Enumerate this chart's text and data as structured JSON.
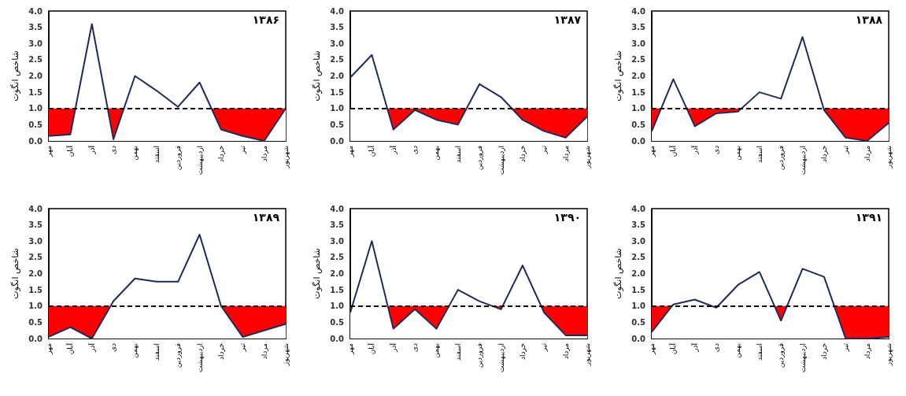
{
  "chart_data": [
    {
      "type": "line",
      "title": "۱۳۸۶",
      "ylabel": "شاخص انگوت",
      "categories": [
        "مهر",
        "آبان",
        "آذر",
        "دی",
        "بهمن",
        "اسفند",
        "فروردین",
        "اردیبهشت",
        "خرداد",
        "تیر",
        "مرداد",
        "شهریور"
      ],
      "series": [
        {
          "color": "#1f2a5c",
          "values": [
            0.15,
            0.2,
            3.6,
            0.05,
            2.0,
            1.55,
            1.05,
            1.8,
            0.35,
            0.15,
            0.0,
            1.0
          ]
        }
      ],
      "ylim": [
        0,
        4
      ],
      "yticks": [
        {
          "value": 0,
          "label": "0.0"
        },
        {
          "value": 0.5,
          "label": "0.5"
        },
        {
          "value": 1,
          "label": "1.0"
        },
        {
          "value": 1.5,
          "label": "1.5"
        },
        {
          "value": 2,
          "label": "2.0"
        },
        {
          "value": 2.5,
          "label": "2.5"
        },
        {
          "value": 3,
          "label": "3.0"
        },
        {
          "value": 3.5,
          "label": "3.5"
        },
        {
          "value": 4,
          "label": "4.0"
        }
      ],
      "ref_lines": [
        {
          "axis": "y",
          "value": 1,
          "line_style": "dashed",
          "color": "#000000"
        }
      ],
      "bands": [
        {
          "axis": "y",
          "from": 0,
          "to": 1,
          "color": "#ff0000"
        }
      ],
      "marker": "none",
      "grid": false
    },
    {
      "type": "line",
      "title": "۱۳۸۷",
      "ylabel": "شاخص انگوت",
      "categories": [
        "مهر",
        "آبان",
        "آذر",
        "دی",
        "بهمن",
        "اسفند",
        "فروردین",
        "اردیبهشت",
        "خرداد",
        "تیر",
        "مرداد",
        "شهریور"
      ],
      "series": [
        {
          "color": "#1f2a5c",
          "values": [
            1.95,
            2.65,
            0.35,
            0.95,
            0.65,
            0.5,
            1.75,
            1.35,
            0.65,
            0.3,
            0.1,
            0.75
          ]
        }
      ],
      "ylim": [
        0,
        4
      ],
      "yticks": [
        {
          "value": 0,
          "label": "0.0"
        },
        {
          "value": 0.5,
          "label": "0.5"
        },
        {
          "value": 1,
          "label": "1.0"
        },
        {
          "value": 1.5,
          "label": "1.5"
        },
        {
          "value": 2,
          "label": "2.0"
        },
        {
          "value": 2.5,
          "label": "2.5"
        },
        {
          "value": 3,
          "label": "3.0"
        },
        {
          "value": 3.5,
          "label": "3.5"
        },
        {
          "value": 4,
          "label": "4.0"
        }
      ],
      "ref_lines": [
        {
          "axis": "y",
          "value": 1,
          "line_style": "dashed",
          "color": "#000000"
        }
      ],
      "bands": [
        {
          "axis": "y",
          "from": 0,
          "to": 1,
          "color": "#ff0000"
        }
      ],
      "marker": "none",
      "grid": false
    },
    {
      "type": "line",
      "title": "۱۳۸۸",
      "ylabel": "شاخص انگوت",
      "categories": [
        "مهر",
        "آبان",
        "آذر",
        "دی",
        "بهمن",
        "اسفند",
        "فروردین",
        "اردیبهشت",
        "خرداد",
        "تیر",
        "مرداد",
        "شهریور"
      ],
      "series": [
        {
          "color": "#1f2a5c",
          "values": [
            0.3,
            1.9,
            0.45,
            0.85,
            0.9,
            1.5,
            1.3,
            3.2,
            0.95,
            0.1,
            0.0,
            0.55
          ]
        }
      ],
      "ylim": [
        0,
        4
      ],
      "yticks": [
        {
          "value": 0,
          "label": "0.0"
        },
        {
          "value": 0.5,
          "label": "0.5"
        },
        {
          "value": 1,
          "label": "1.0"
        },
        {
          "value": 1.5,
          "label": "1.5"
        },
        {
          "value": 2,
          "label": "2.0"
        },
        {
          "value": 2.5,
          "label": "2.5"
        },
        {
          "value": 3,
          "label": "3.0"
        },
        {
          "value": 3.5,
          "label": "3.5"
        },
        {
          "value": 4,
          "label": "4.0"
        }
      ],
      "ref_lines": [
        {
          "axis": "y",
          "value": 1,
          "line_style": "dashed",
          "color": "#000000"
        }
      ],
      "bands": [
        {
          "axis": "y",
          "from": 0,
          "to": 1,
          "color": "#ff0000"
        }
      ],
      "marker": "none",
      "grid": false
    },
    {
      "type": "line",
      "title": "۱۳۸۹",
      "ylabel": "شاخص انگوت",
      "categories": [
        "مهر",
        "آبان",
        "آذر",
        "دی",
        "بهمن",
        "اسفند",
        "فروردین",
        "اردیبهشت",
        "خرداد",
        "تیر",
        "مرداد",
        "شهریور"
      ],
      "series": [
        {
          "color": "#1f2a5c",
          "values": [
            0.05,
            0.35,
            0.0,
            1.15,
            1.85,
            1.75,
            1.75,
            3.2,
            1.0,
            0.05,
            0.25,
            0.45
          ]
        }
      ],
      "ylim": [
        0,
        4
      ],
      "yticks": [
        {
          "value": 0,
          "label": "0.0"
        },
        {
          "value": 0.5,
          "label": "0.5"
        },
        {
          "value": 1,
          "label": "1.0"
        },
        {
          "value": 1.5,
          "label": "1.5"
        },
        {
          "value": 2,
          "label": "2.0"
        },
        {
          "value": 2.5,
          "label": "2.5"
        },
        {
          "value": 3,
          "label": "3.0"
        },
        {
          "value": 3.5,
          "label": "3.5"
        },
        {
          "value": 4,
          "label": "4.0"
        }
      ],
      "ref_lines": [
        {
          "axis": "y",
          "value": 1,
          "line_style": "dashed",
          "color": "#000000"
        }
      ],
      "bands": [
        {
          "axis": "y",
          "from": 0,
          "to": 1,
          "color": "#ff0000"
        }
      ],
      "marker": "none",
      "grid": false
    },
    {
      "type": "line",
      "title": "۱۳۹۰",
      "ylabel": "شاخص انگوت",
      "categories": [
        "مهر",
        "آبان",
        "آذر",
        "دی",
        "بهمن",
        "اسفند",
        "فروردین",
        "اردیبهشت",
        "خرداد",
        "تیر",
        "مرداد",
        "شهریور"
      ],
      "series": [
        {
          "color": "#1f2a5c",
          "values": [
            0.8,
            3.0,
            0.3,
            0.9,
            0.3,
            1.5,
            1.15,
            0.9,
            2.25,
            0.8,
            0.1,
            0.1
          ]
        }
      ],
      "ylim": [
        0,
        4
      ],
      "yticks": [
        {
          "value": 0,
          "label": "0.0"
        },
        {
          "value": 0.5,
          "label": "0.5"
        },
        {
          "value": 1,
          "label": "1.0"
        },
        {
          "value": 1.5,
          "label": "1.5"
        },
        {
          "value": 2,
          "label": "2.0"
        },
        {
          "value": 2.5,
          "label": "2.5"
        },
        {
          "value": 3,
          "label": "3.0"
        },
        {
          "value": 3.5,
          "label": "3.5"
        },
        {
          "value": 4,
          "label": "4.0"
        }
      ],
      "ref_lines": [
        {
          "axis": "y",
          "value": 1,
          "line_style": "dashed",
          "color": "#000000"
        }
      ],
      "bands": [
        {
          "axis": "y",
          "from": 0,
          "to": 1,
          "color": "#ff0000"
        }
      ],
      "marker": "none",
      "grid": false
    },
    {
      "type": "line",
      "title": "۱۳۹۱",
      "ylabel": "شاخص انگوت",
      "categories": [
        "مهر",
        "آبان",
        "آذر",
        "دی",
        "بهمن",
        "اسفند",
        "فروردین",
        "اردیبهشت",
        "خرداد",
        "تیر",
        "مرداد",
        "شهریور"
      ],
      "series": [
        {
          "color": "#1f2a5c",
          "values": [
            0.2,
            1.05,
            1.2,
            0.95,
            1.65,
            2.05,
            0.55,
            2.15,
            1.9,
            0.0,
            0.0,
            0.05
          ]
        }
      ],
      "ylim": [
        0,
        4
      ],
      "yticks": [
        {
          "value": 0,
          "label": "0.0"
        },
        {
          "value": 0.5,
          "label": "0.5"
        },
        {
          "value": 1,
          "label": "1.0"
        },
        {
          "value": 1.5,
          "label": "1.5"
        },
        {
          "value": 2,
          "label": "2.0"
        },
        {
          "value": 2.5,
          "label": "2.5"
        },
        {
          "value": 3,
          "label": "3.0"
        },
        {
          "value": 3.5,
          "label": "3.5"
        },
        {
          "value": 4,
          "label": "4.0"
        }
      ],
      "ref_lines": [
        {
          "axis": "y",
          "value": 1,
          "line_style": "dashed",
          "color": "#000000"
        }
      ],
      "bands": [
        {
          "axis": "y",
          "from": 0,
          "to": 1,
          "color": "#ff0000"
        }
      ],
      "marker": "none",
      "grid": false
    }
  ]
}
